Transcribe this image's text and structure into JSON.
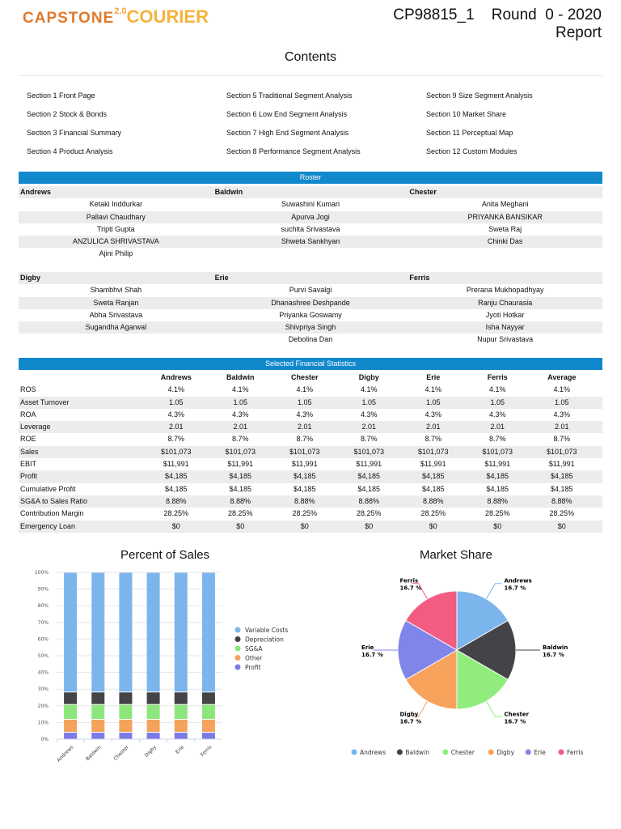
{
  "header": {
    "logo": {
      "capstone": "CAPSTONE",
      "version": "2.0",
      "courier": "COURIER"
    },
    "title_line1": "CP98815_1    Round  0 - 2020",
    "title_line2": "Report"
  },
  "contents": {
    "title": "Contents",
    "items": [
      "Section 1 Front Page",
      "Section 2 Stock & Bonds",
      "Section 3 Financial Summary",
      "Section 4 Product Analysis",
      "Section 5 Traditional Segment Analysis",
      "Section 6 Low End Segment Analysis",
      "Section 7 High End Segment Analysis",
      "Section 8 Performance Segment Analysis",
      "Section 9 Size Segment Analysis",
      "Section 10 Market Share",
      "Section 11 Perceptual Map",
      "Section 12 Custom Modules"
    ]
  },
  "roster": {
    "title": "Roster",
    "groups": [
      {
        "teams": [
          "Andrews",
          "Baldwin",
          "Chester"
        ],
        "rows": [
          [
            "Ketaki Inddurkar",
            "Suwashini Kumari",
            "Anita Meghani"
          ],
          [
            "Pallavi Chaudhary",
            "Apurva Jogi",
            "PRIYANKA BANSIKAR"
          ],
          [
            "Tripti Gupta",
            "suchita Srivastava",
            "Sweta Raj"
          ],
          [
            "ANZULICA SHRIVASTAVA",
            "Shweta Sankhyan",
            "Chinki Das"
          ],
          [
            "Ajini Philip",
            "",
            ""
          ]
        ]
      },
      {
        "teams": [
          "Digby",
          "Erie",
          "Ferris"
        ],
        "rows": [
          [
            "Shambhvi Shah",
            "Purvi Savalgi",
            "Prerana Mukhopadhyay"
          ],
          [
            "Sweta Ranjan",
            "Dhanashree Deshpande",
            "Ranju Chaurasia"
          ],
          [
            "Abha Srivastava",
            "Priyanka Goswamy",
            "Jyoti Hotkar"
          ],
          [
            "Sugandha Agarwal",
            "Shivpriya Singh",
            "Isha Nayyar"
          ],
          [
            "",
            "Debolina Dan",
            "Nupur Srivastava"
          ]
        ]
      }
    ]
  },
  "financial": {
    "title": "Selected Financial Statistics",
    "columns": [
      "",
      "Andrews",
      "Baldwin",
      "Chester",
      "Digby",
      "Erie",
      "Ferris",
      "Average"
    ],
    "rows": [
      [
        "ROS",
        "4.1%",
        "4.1%",
        "4.1%",
        "4.1%",
        "4.1%",
        "4.1%",
        "4.1%"
      ],
      [
        "Asset Turnover",
        "1.05",
        "1.05",
        "1.05",
        "1.05",
        "1.05",
        "1.05",
        "1.05"
      ],
      [
        "ROA",
        "4.3%",
        "4.3%",
        "4.3%",
        "4.3%",
        "4.3%",
        "4.3%",
        "4.3%"
      ],
      [
        "Leverage",
        "2.01",
        "2.01",
        "2.01",
        "2.01",
        "2.01",
        "2.01",
        "2.01"
      ],
      [
        "ROE",
        "8.7%",
        "8.7%",
        "8.7%",
        "8.7%",
        "8.7%",
        "8.7%",
        "8.7%"
      ],
      [
        "Sales",
        "$101,073",
        "$101,073",
        "$101,073",
        "$101,073",
        "$101,073",
        "$101,073",
        "$101,073"
      ],
      [
        "EBIT",
        "$11,991",
        "$11,991",
        "$11,991",
        "$11,991",
        "$11,991",
        "$11,991",
        "$11,991"
      ],
      [
        "Profit",
        "$4,185",
        "$4,185",
        "$4,185",
        "$4,185",
        "$4,185",
        "$4,185",
        "$4,185"
      ],
      [
        "Cumulative Profit",
        "$4,185",
        "$4,185",
        "$4,185",
        "$4,185",
        "$4,185",
        "$4,185",
        "$4,185"
      ],
      [
        "SG&A to Sales Ratio",
        "8.88%",
        "8.88%",
        "8.88%",
        "8.88%",
        "8.88%",
        "8.88%",
        "8.88%"
      ],
      [
        "Contribution Margin",
        "28.25%",
        "28.25%",
        "28.25%",
        "28.25%",
        "28.25%",
        "28.25%",
        "28.25%"
      ],
      [
        "Emergency Loan",
        "$0",
        "$0",
        "$0",
        "$0",
        "$0",
        "$0",
        "$0"
      ]
    ]
  },
  "chart_data": [
    {
      "type": "bar",
      "stacked": true,
      "title": "Percent of Sales",
      "categories": [
        "Andrews",
        "Baldwin",
        "Chester",
        "Digby",
        "Erie",
        "Ferris"
      ],
      "ylim": [
        0,
        100
      ],
      "yticks": [
        "0%",
        "10%",
        "20%",
        "30%",
        "40%",
        "50%",
        "60%",
        "70%",
        "80%",
        "90%",
        "100%"
      ],
      "grid": true,
      "legend": "right",
      "series": [
        {
          "name": "Profit",
          "color": "#7b7be6",
          "values": [
            4.1,
            4.1,
            4.1,
            4.1,
            4.1,
            4.1
          ]
        },
        {
          "name": "Other",
          "color": "#f4a35c",
          "values": [
            7.8,
            7.8,
            7.8,
            7.8,
            7.8,
            7.8
          ]
        },
        {
          "name": "SG&A",
          "color": "#8ce67b",
          "values": [
            8.88,
            8.88,
            8.88,
            8.88,
            8.88,
            8.88
          ]
        },
        {
          "name": "Depreciation",
          "color": "#434348",
          "values": [
            7.47,
            7.47,
            7.47,
            7.47,
            7.47,
            7.47
          ]
        },
        {
          "name": "Variable Costs",
          "color": "#7cb5ec",
          "values": [
            71.75,
            71.75,
            71.75,
            71.75,
            71.75,
            71.75
          ]
        }
      ],
      "legend_order": [
        "Variable Costs",
        "Depreciation",
        "SG&A",
        "Other",
        "Profit"
      ]
    },
    {
      "type": "pie",
      "title": "Market Share",
      "legend": "bottom",
      "slices": [
        {
          "name": "Andrews",
          "value": 16.7,
          "label": "16.7 %",
          "color": "#7cb5ec"
        },
        {
          "name": "Baldwin",
          "value": 16.7,
          "label": "16.7 %",
          "color": "#434348"
        },
        {
          "name": "Chester",
          "value": 16.7,
          "label": "16.7 %",
          "color": "#90ed7d"
        },
        {
          "name": "Digby",
          "value": 16.7,
          "label": "16.7 %",
          "color": "#f7a35c"
        },
        {
          "name": "Erie",
          "value": 16.7,
          "label": "16.7 %",
          "color": "#8085e9"
        },
        {
          "name": "Ferris",
          "value": 16.7,
          "label": "16.7 %",
          "color": "#f15c80"
        }
      ]
    }
  ],
  "colors": {
    "section_bar": "#1188cc",
    "row_alt": "#ececec"
  }
}
